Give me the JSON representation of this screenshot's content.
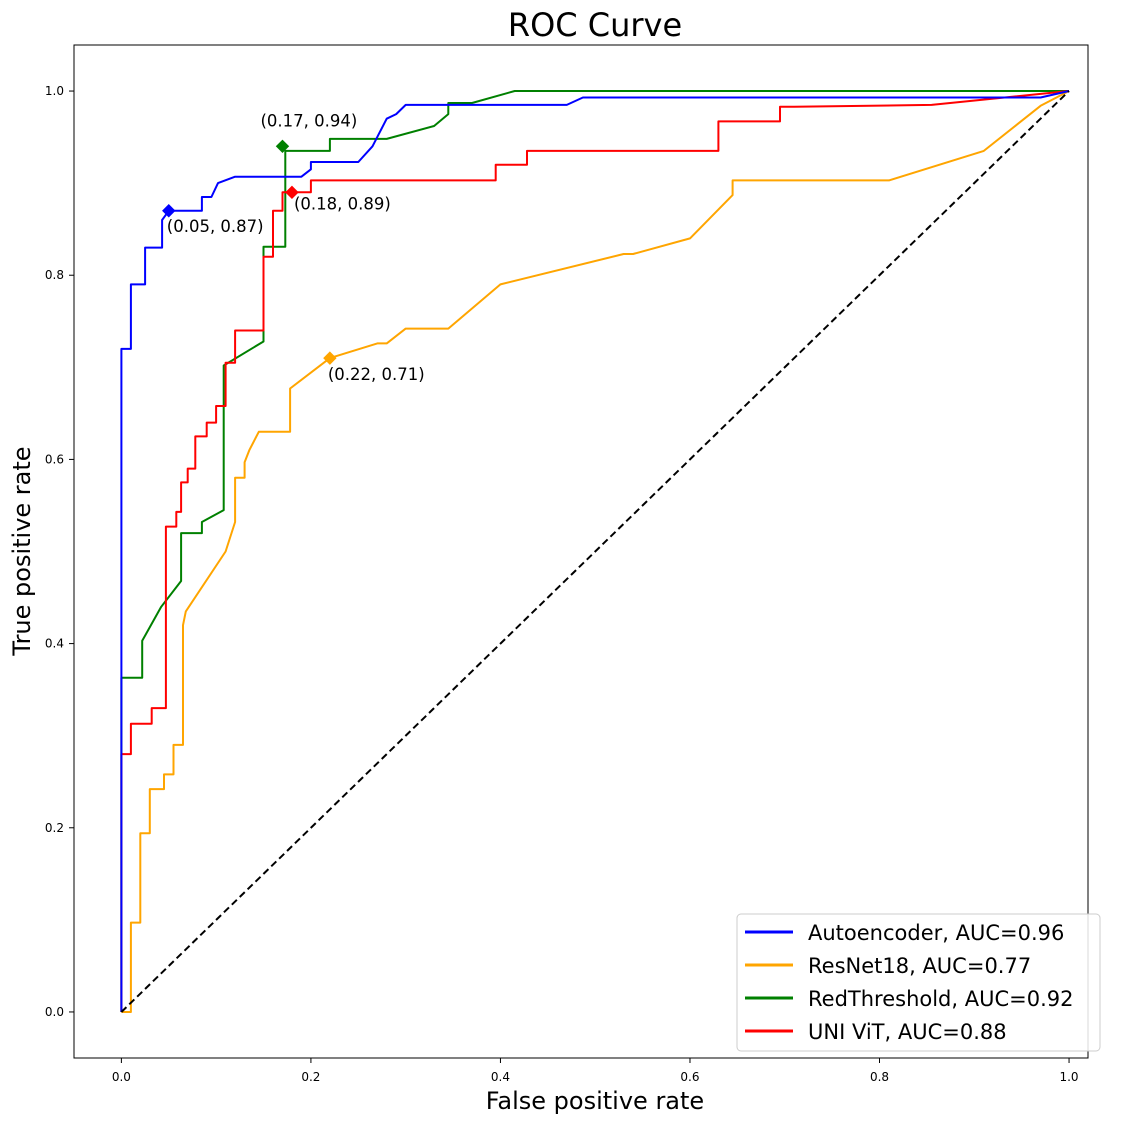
{
  "chart_data": {
    "type": "line",
    "title": "ROC Curve",
    "xlabel": "False positive rate",
    "ylabel": "True positive rate",
    "xlim": [
      -0.05,
      1.02
    ],
    "ylim": [
      -0.05,
      1.05
    ],
    "xticks": [
      0.0,
      0.2,
      0.4,
      0.6,
      0.8,
      1.0
    ],
    "xtick_labels": [
      "0.0",
      "0.2",
      "0.4",
      "0.6",
      "0.8",
      "1.0"
    ],
    "yticks": [
      0.0,
      0.2,
      0.4,
      0.6,
      0.8,
      1.0
    ],
    "ytick_labels": [
      "0.0",
      "0.2",
      "0.4",
      "0.6",
      "0.8",
      "1.0"
    ],
    "grid": false,
    "legend_position": "bottom-right",
    "series": [
      {
        "name": "Autoencoder, AUC=0.96",
        "color": "#0000ff",
        "x": [
          0,
          0,
          0.01,
          0.01,
          0.025,
          0.025,
          0.043,
          0.043,
          0.05,
          0.085,
          0.085,
          0.095,
          0.102,
          0.102,
          0.12,
          0.19,
          0.2,
          0.2,
          0.25,
          0.265,
          0.28,
          0.29,
          0.3,
          0.31,
          0.47,
          0.487,
          0.97,
          1.0
        ],
        "y": [
          0,
          0.72,
          0.72,
          0.79,
          0.79,
          0.83,
          0.83,
          0.86,
          0.87,
          0.87,
          0.885,
          0.885,
          0.9,
          0.9,
          0.907,
          0.907,
          0.915,
          0.923,
          0.923,
          0.94,
          0.97,
          0.975,
          0.985,
          0.985,
          0.985,
          0.993,
          0.993,
          1.0
        ],
        "threshold_point": [
          0.05,
          0.87
        ],
        "threshold_label": "(0.05, 0.87)"
      },
      {
        "name": "ResNet18, AUC=0.77",
        "color": "#ffa500",
        "x": [
          0,
          0.01,
          0.01,
          0.02,
          0.02,
          0.03,
          0.03,
          0.033,
          0.033,
          0.045,
          0.045,
          0.055,
          0.055,
          0.065,
          0.065,
          0.068,
          0.068,
          0.11,
          0.12,
          0.12,
          0.13,
          0.13,
          0.135,
          0.145,
          0.145,
          0.178,
          0.178,
          0.22,
          0.27,
          0.28,
          0.3,
          0.345,
          0.4,
          0.53,
          0.54,
          0.6,
          0.645,
          0.645,
          0.81,
          0.91,
          0.97,
          1.0
        ],
        "y": [
          0,
          0,
          0.097,
          0.097,
          0.194,
          0.194,
          0.242,
          0.242,
          0.242,
          0.242,
          0.258,
          0.258,
          0.29,
          0.29,
          0.42,
          0.435,
          0.435,
          0.5,
          0.532,
          0.58,
          0.58,
          0.597,
          0.61,
          0.63,
          0.63,
          0.63,
          0.677,
          0.71,
          0.726,
          0.726,
          0.742,
          0.742,
          0.79,
          0.823,
          0.823,
          0.84,
          0.887,
          0.903,
          0.903,
          0.935,
          0.984,
          1.0
        ],
        "threshold_point": [
          0.22,
          0.71
        ],
        "threshold_label": "(0.22, 0.71)"
      },
      {
        "name": "RedThreshold, AUC=0.92",
        "color": "#008000",
        "x": [
          0,
          0,
          0.022,
          0.022,
          0.042,
          0.063,
          0.063,
          0.085,
          0.085,
          0.108,
          0.108,
          0.15,
          0.15,
          0.165,
          0.165,
          0.173,
          0.173,
          0.22,
          0.22,
          0.28,
          0.33,
          0.345,
          0.345,
          0.37,
          0.415,
          1.0
        ],
        "y": [
          0,
          0.363,
          0.363,
          0.403,
          0.44,
          0.468,
          0.52,
          0.52,
          0.532,
          0.545,
          0.702,
          0.728,
          0.831,
          0.831,
          0.831,
          0.831,
          0.935,
          0.935,
          0.948,
          0.948,
          0.962,
          0.975,
          0.987,
          0.987,
          1.0,
          1.0
        ],
        "threshold_point": [
          0.17,
          0.94
        ],
        "threshold_label": "(0.17, 0.94)"
      },
      {
        "name": "UNI ViT, AUC=0.88",
        "color": "#ff0000",
        "x": [
          0,
          0,
          0.01,
          0.01,
          0.032,
          0.032,
          0.047,
          0.047,
          0.058,
          0.058,
          0.063,
          0.063,
          0.07,
          0.07,
          0.078,
          0.078,
          0.09,
          0.09,
          0.1,
          0.1,
          0.11,
          0.11,
          0.12,
          0.12,
          0.133,
          0.133,
          0.15,
          0.15,
          0.16,
          0.16,
          0.17,
          0.17,
          0.18,
          0.18,
          0.2,
          0.2,
          0.395,
          0.395,
          0.428,
          0.428,
          0.63,
          0.63,
          0.695,
          0.695,
          0.71,
          0.71,
          0.855,
          1.0
        ],
        "y": [
          0,
          0.28,
          0.28,
          0.313,
          0.313,
          0.33,
          0.33,
          0.527,
          0.527,
          0.543,
          0.543,
          0.575,
          0.575,
          0.59,
          0.59,
          0.625,
          0.625,
          0.64,
          0.64,
          0.658,
          0.658,
          0.705,
          0.705,
          0.74,
          0.74,
          0.74,
          0.74,
          0.82,
          0.82,
          0.87,
          0.87,
          0.89,
          0.89,
          0.89,
          0.89,
          0.903,
          0.903,
          0.92,
          0.92,
          0.935,
          0.935,
          0.967,
          0.967,
          0.983,
          0.983,
          0.983,
          0.985,
          1.0
        ],
        "threshold_point": [
          0.18,
          0.89
        ],
        "threshold_label": "(0.18, 0.89)"
      },
      {
        "name": "chance",
        "color": "#000000",
        "dashed": true,
        "x": [
          0,
          1
        ],
        "y": [
          0,
          1
        ]
      }
    ],
    "legend_entries": [
      {
        "label": "Autoencoder, AUC=0.96",
        "color": "#0000ff"
      },
      {
        "label": "ResNet18, AUC=0.77",
        "color": "#ffa500"
      },
      {
        "label": "RedThreshold, AUC=0.92",
        "color": "#008000"
      },
      {
        "label": "UNI ViT, AUC=0.88",
        "color": "#ff0000"
      }
    ]
  }
}
